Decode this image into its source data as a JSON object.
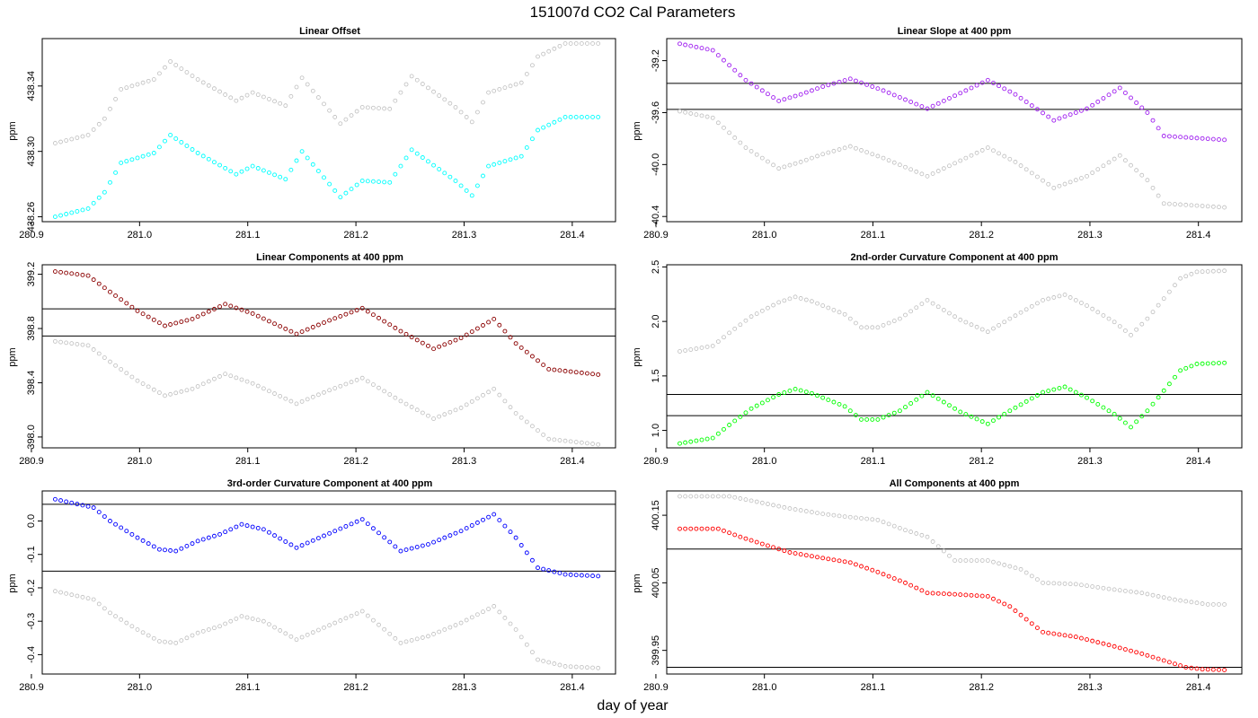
{
  "title": "151007d   CO2 Cal Parameters",
  "xlabel": "day of year",
  "colors": {
    "ref": "#bebebe",
    "frame": "#000000",
    "hline": "#000000"
  },
  "chart_data": [
    {
      "type": "scatter",
      "title": "Linear Offset",
      "ylabel": "ppm",
      "xlim": [
        280.91,
        281.44
      ],
      "ylim": [
        438.257,
        438.369
      ],
      "xticks": [
        280.9,
        281.0,
        281.1,
        281.2,
        281.3,
        281.4
      ],
      "xtick_labels": [
        "280.9",
        "281.0",
        "281.1",
        "281.2",
        "281.3",
        "281.4"
      ],
      "yticks": [
        438.26,
        438.3,
        438.34
      ],
      "ytick_labels": [
        "438.26",
        "438.30",
        "438.34"
      ],
      "hlines": [],
      "color": "#00ffff",
      "x_start": 280.922,
      "x_step": 0.00507,
      "n": 100,
      "knots": [
        [
          0,
          438.26
        ],
        [
          6,
          438.265
        ],
        [
          9,
          438.275
        ],
        [
          12,
          438.293
        ],
        [
          18,
          438.299
        ],
        [
          21,
          438.31
        ],
        [
          26,
          438.299
        ],
        [
          33,
          438.286
        ],
        [
          36,
          438.291
        ],
        [
          42,
          438.283
        ],
        [
          45,
          438.3
        ],
        [
          52,
          438.272
        ],
        [
          56,
          438.282
        ],
        [
          61,
          438.281
        ],
        [
          65,
          438.301
        ],
        [
          73,
          438.282
        ],
        [
          76,
          438.273
        ],
        [
          79,
          438.291
        ],
        [
          85,
          438.297
        ],
        [
          88,
          438.313
        ],
        [
          93,
          438.321
        ],
        [
          99,
          438.321
        ]
      ],
      "ref_offset": 0.045,
      "ref_knots": []
    },
    {
      "type": "scatter",
      "title": "Linear Slope at 400 ppm",
      "ylabel": "ppm",
      "xlim": [
        280.91,
        281.44
      ],
      "ylim": [
        -40.44,
        -39.03
      ],
      "xticks": [
        280.9,
        281.0,
        281.1,
        281.2,
        281.3,
        281.4
      ],
      "xtick_labels": [
        "280.9",
        "281.0",
        "281.1",
        "281.2",
        "281.3",
        "281.4"
      ],
      "yticks": [
        -39.2,
        -39.6,
        -40.0,
        -40.4
      ],
      "ytick_labels": [
        "-39.2",
        "-39.6",
        "-40.0",
        "-40.4"
      ],
      "hlines": [
        -39.375,
        -39.575
      ],
      "color": "#a020f0",
      "x_start": 280.922,
      "x_step": 0.00507,
      "n": 100,
      "knots": [
        [
          0,
          -39.07
        ],
        [
          6,
          -39.12
        ],
        [
          12,
          -39.35
        ],
        [
          18,
          -39.51
        ],
        [
          22,
          -39.46
        ],
        [
          26,
          -39.4
        ],
        [
          31,
          -39.34
        ],
        [
          37,
          -39.43
        ],
        [
          45,
          -39.57
        ],
        [
          51,
          -39.45
        ],
        [
          56,
          -39.35
        ],
        [
          61,
          -39.46
        ],
        [
          68,
          -39.66
        ],
        [
          74,
          -39.57
        ],
        [
          80,
          -39.41
        ],
        [
          85,
          -39.6
        ],
        [
          88,
          -39.78
        ],
        [
          99,
          -39.81
        ]
      ],
      "ref_offset": -0.52,
      "ref_knots": []
    },
    {
      "type": "scatter",
      "title": "Linear Components at 400 ppm",
      "ylabel": "ppm",
      "xlim": [
        280.91,
        281.44
      ],
      "ylim": [
        397.92,
        399.27
      ],
      "xticks": [
        280.9,
        281.0,
        281.1,
        281.2,
        281.3,
        281.4
      ],
      "xtick_labels": [
        "280.9",
        "281.0",
        "281.1",
        "281.2",
        "281.3",
        "281.4"
      ],
      "yticks": [
        398.0,
        398.4,
        398.8,
        399.2
      ],
      "ytick_labels": [
        "398.0",
        "398.4",
        "398.8",
        "399.2"
      ],
      "hlines": [
        398.945,
        398.745
      ],
      "color": "#8b0000",
      "x_start": 280.922,
      "x_step": 0.00507,
      "n": 100,
      "knots": [
        [
          0,
          399.22
        ],
        [
          6,
          399.19
        ],
        [
          10,
          399.07
        ],
        [
          15,
          398.93
        ],
        [
          20,
          398.82
        ],
        [
          25,
          398.87
        ],
        [
          31,
          398.98
        ],
        [
          36,
          398.91
        ],
        [
          44,
          398.76
        ],
        [
          50,
          398.86
        ],
        [
          56,
          398.95
        ],
        [
          63,
          398.78
        ],
        [
          69,
          398.65
        ],
        [
          74,
          398.73
        ],
        [
          80,
          398.87
        ],
        [
          84,
          398.69
        ],
        [
          90,
          398.5
        ],
        [
          99,
          398.46
        ]
      ],
      "ref_offset": -0.515,
      "ref_knots": []
    },
    {
      "type": "scatter",
      "title": "2nd-order Curvature Component at 400 ppm",
      "ylabel": "ppm",
      "xlim": [
        280.91,
        281.44
      ],
      "ylim": [
        0.84,
        2.52
      ],
      "xticks": [
        280.9,
        281.0,
        281.1,
        281.2,
        281.3,
        281.4
      ],
      "xtick_labels": [
        "280.9",
        "281.0",
        "281.1",
        "281.2",
        "281.3",
        "281.4"
      ],
      "yticks": [
        1.0,
        1.5,
        2.0,
        2.5
      ],
      "ytick_labels": [
        "1.0",
        "1.5",
        "2.0",
        "2.5"
      ],
      "hlines": [
        1.33,
        1.135
      ],
      "color": "#00ff00",
      "x_start": 280.922,
      "x_step": 0.00507,
      "n": 100,
      "knots": [
        [
          0,
          0.88
        ],
        [
          6,
          0.93
        ],
        [
          9,
          1.05
        ],
        [
          13,
          1.2
        ],
        [
          18,
          1.33
        ],
        [
          21,
          1.38
        ],
        [
          24,
          1.34
        ],
        [
          30,
          1.22
        ],
        [
          33,
          1.1
        ],
        [
          36,
          1.1
        ],
        [
          40,
          1.18
        ],
        [
          45,
          1.35
        ],
        [
          51,
          1.17
        ],
        [
          56,
          1.06
        ],
        [
          60,
          1.18
        ],
        [
          66,
          1.35
        ],
        [
          70,
          1.4
        ],
        [
          74,
          1.3
        ],
        [
          79,
          1.15
        ],
        [
          82,
          1.03
        ],
        [
          85,
          1.18
        ],
        [
          91,
          1.55
        ],
        [
          94,
          1.61
        ],
        [
          99,
          1.62
        ]
      ],
      "ref_offset": 0.845,
      "ref_knots": []
    },
    {
      "type": "scatter",
      "title": "3rd-order Curvature Component at 400 ppm",
      "ylabel": "ppm",
      "xlim": [
        280.91,
        281.44
      ],
      "ylim": [
        -0.458,
        0.09
      ],
      "xticks": [
        280.9,
        281.0,
        281.1,
        281.2,
        281.3,
        281.4
      ],
      "xtick_labels": [
        "280.9",
        "281.0",
        "281.1",
        "281.2",
        "281.3",
        "281.4"
      ],
      "yticks": [
        0.0,
        -0.1,
        -0.2,
        -0.3,
        -0.4
      ],
      "ytick_labels": [
        "0.0",
        "-0.1",
        "-0.2",
        "-0.3",
        "-0.4"
      ],
      "hlines": [
        0.05,
        -0.15
      ],
      "color": "#0000ff",
      "x_start": 280.922,
      "x_step": 0.00507,
      "n": 100,
      "knots": [
        [
          0,
          0.065
        ],
        [
          7,
          0.04
        ],
        [
          10,
          0.0
        ],
        [
          15,
          -0.05
        ],
        [
          19,
          -0.085
        ],
        [
          22,
          -0.09
        ],
        [
          26,
          -0.06
        ],
        [
          30,
          -0.04
        ],
        [
          34,
          -0.01
        ],
        [
          38,
          -0.025
        ],
        [
          44,
          -0.08
        ],
        [
          51,
          -0.03
        ],
        [
          56,
          0.005
        ],
        [
          63,
          -0.09
        ],
        [
          68,
          -0.07
        ],
        [
          74,
          -0.03
        ],
        [
          80,
          0.02
        ],
        [
          84,
          -0.05
        ],
        [
          88,
          -0.14
        ],
        [
          93,
          -0.16
        ],
        [
          99,
          -0.165
        ]
      ],
      "ref_offset": -0.275,
      "ref_knots": []
    },
    {
      "type": "scatter",
      "title": "All Components at 400 ppm",
      "ylabel": "ppm",
      "xlim": [
        280.91,
        281.44
      ],
      "ylim": [
        399.915,
        400.186
      ],
      "xticks": [
        280.9,
        281.0,
        281.1,
        281.2,
        281.3,
        281.4
      ],
      "xtick_labels": [
        "280.9",
        "281.0",
        "281.1",
        "281.2",
        "281.3",
        "281.4"
      ],
      "yticks": [
        399.95,
        400.05,
        400.15
      ],
      "ytick_labels": [
        "399.95",
        "400.05",
        "400.15"
      ],
      "hlines": [
        400.1,
        399.925
      ],
      "color": "#ff0000",
      "x_start": 280.922,
      "x_step": 0.00507,
      "n": 100,
      "knots": [
        [
          0,
          400.13
        ],
        [
          7,
          400.13
        ],
        [
          11,
          400.118
        ],
        [
          16,
          400.105
        ],
        [
          20,
          400.095
        ],
        [
          25,
          400.088
        ],
        [
          31,
          400.08
        ],
        [
          36,
          400.066
        ],
        [
          41,
          400.05
        ],
        [
          45,
          400.035
        ],
        [
          50,
          400.033
        ],
        [
          56,
          400.03
        ],
        [
          60,
          400.015
        ],
        [
          66,
          399.977
        ],
        [
          72,
          399.97
        ],
        [
          78,
          399.958
        ],
        [
          84,
          399.945
        ],
        [
          88,
          399.935
        ],
        [
          92,
          399.925
        ],
        [
          95,
          399.922
        ],
        [
          99,
          399.921
        ]
      ],
      "ref_offset": 0.045,
      "ref_knots": [
        [
          0,
          400.178
        ],
        [
          9,
          400.178
        ],
        [
          14,
          400.17
        ],
        [
          20,
          400.16
        ],
        [
          26,
          400.152
        ],
        [
          30,
          400.148
        ],
        [
          36,
          400.143
        ],
        [
          41,
          400.128
        ],
        [
          45,
          400.118
        ],
        [
          50,
          400.083
        ],
        [
          56,
          400.083
        ],
        [
          62,
          400.07
        ],
        [
          66,
          400.05
        ],
        [
          72,
          400.048
        ],
        [
          78,
          400.041
        ],
        [
          84,
          400.035
        ],
        [
          90,
          400.025
        ],
        [
          96,
          400.018
        ],
        [
          99,
          400.018
        ]
      ]
    }
  ]
}
